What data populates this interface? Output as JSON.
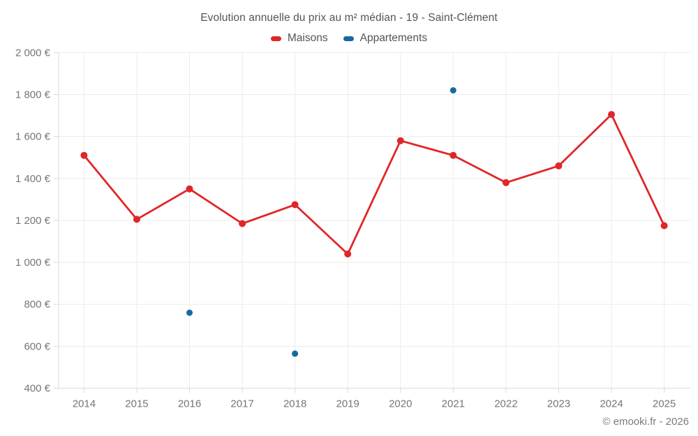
{
  "header": {
    "title": "Evolution annuelle du prix au m² médian - 19 - Saint-Clément"
  },
  "legend": {
    "items": [
      {
        "label": "Maisons",
        "color": "#e02628"
      },
      {
        "label": "Appartements",
        "color": "#1669a0"
      }
    ]
  },
  "footer": {
    "credit": "© emooki.fr - 2026"
  },
  "colors": {
    "grid": "#ececec",
    "axis": "#d9d9d9",
    "tick_label": "#757575",
    "title_text": "#545454"
  },
  "chart_data": {
    "type": "line",
    "title": "Evolution annuelle du prix au m² médian - 19 - Saint-Clément",
    "categories": [
      "2014",
      "2015",
      "2016",
      "2017",
      "2018",
      "2019",
      "2020",
      "2021",
      "2022",
      "2023",
      "2024",
      "2025"
    ],
    "series": [
      {
        "name": "Maisons",
        "color": "#e02628",
        "line": true,
        "values": [
          1510,
          1205,
          1350,
          1185,
          1275,
          1040,
          1580,
          1510,
          1380,
          1460,
          1705,
          1175
        ]
      },
      {
        "name": "Appartements",
        "color": "#1669a0",
        "line": false,
        "values": [
          null,
          null,
          760,
          null,
          565,
          null,
          null,
          1820,
          null,
          null,
          null,
          null
        ]
      }
    ],
    "xlabel": "",
    "ylabel": "",
    "ylim": [
      400,
      2000
    ],
    "ytick_step": 200,
    "ytick_suffix": " €",
    "grid": true,
    "legend_position": "top"
  }
}
